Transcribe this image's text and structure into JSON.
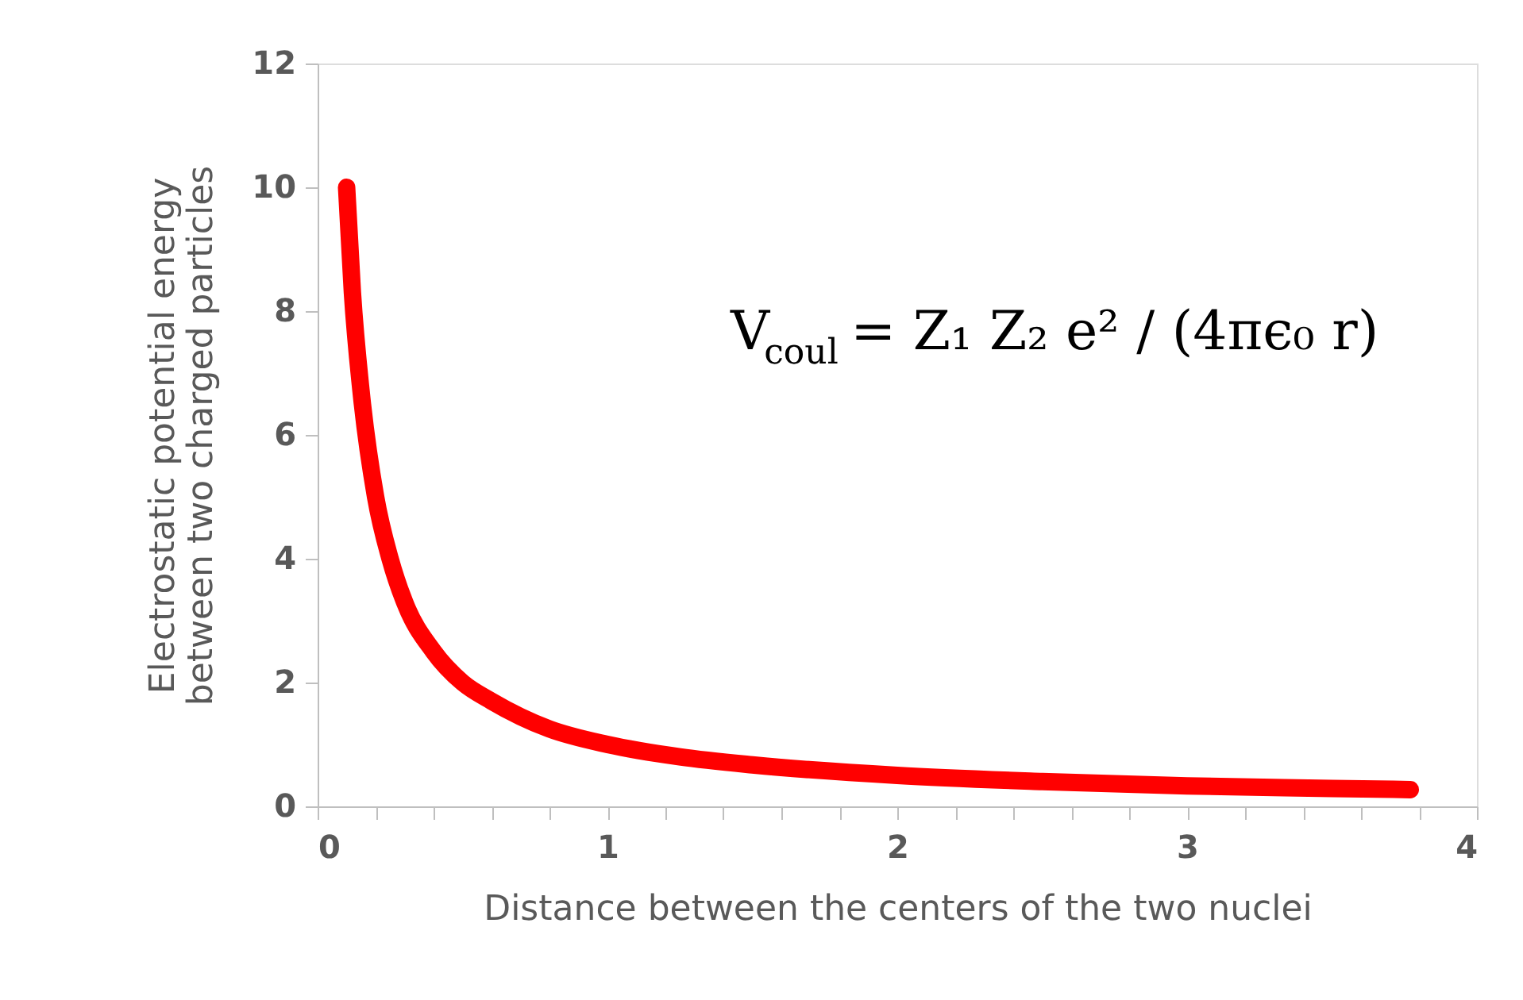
{
  "chart_data": {
    "type": "line",
    "xlabel": "Distance between the centers of the two nuclei",
    "ylabel": "Electrostatic potential energy\nbetween two charged particles",
    "x": [
      0.1,
      0.12,
      0.15,
      0.2,
      0.25,
      0.3,
      0.4,
      0.5,
      0.6,
      0.8,
      1,
      1.25,
      1.5,
      2,
      2.5,
      3,
      3.5,
      3.77
    ],
    "series": [
      {
        "color": "#ff0000",
        "values": [
          10,
          8.3,
          6.7,
          5,
          4,
          3.3,
          2.5,
          2,
          1.7,
          1.25,
          1,
          0.8,
          0.67,
          0.5,
          0.4,
          0.33,
          0.29,
          0.27
        ]
      }
    ],
    "xlim": [
      0,
      4
    ],
    "xticks": [
      0,
      {
        "value": 0.2,
        "label": null
      },
      {
        "value": 0.4,
        "label": null
      },
      {
        "value": 0.6,
        "label": null
      },
      {
        "value": 0.8,
        "label": null
      },
      1,
      {
        "value": 1.2,
        "label": null
      },
      {
        "value": 1.4,
        "label": null
      },
      {
        "value": 1.6,
        "label": null
      },
      {
        "value": 1.8,
        "label": null
      },
      2,
      {
        "value": 2.2,
        "label": null
      },
      {
        "value": 2.4,
        "label": null
      },
      {
        "value": 2.6,
        "label": null
      },
      {
        "value": 2.8,
        "label": null
      },
      3,
      {
        "value": 3.2,
        "label": null
      },
      {
        "value": 3.4,
        "label": null
      },
      {
        "value": 3.6,
        "label": null
      },
      {
        "value": 3.8,
        "label": null
      },
      4
    ],
    "ylim": [
      0,
      12
    ],
    "yticks": [
      0,
      2,
      4,
      6,
      8,
      10,
      12
    ],
    "grid": false,
    "line_style": "solid",
    "annotations": [
      "V$_{coul}$ = Z₁ Z₂ e² / (4πϵ₀ r)"
    ]
  }
}
